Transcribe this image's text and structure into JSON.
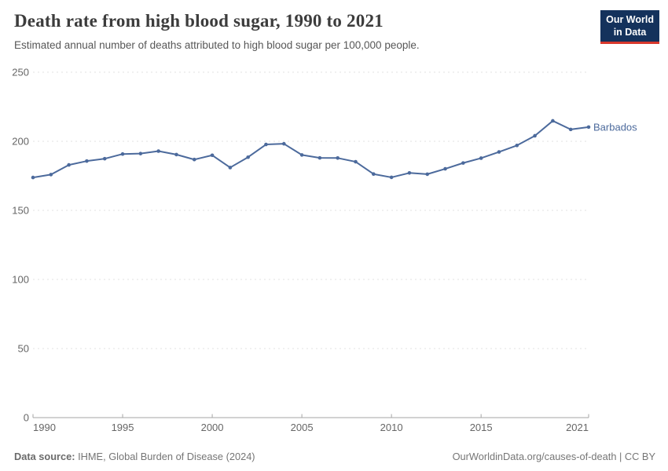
{
  "chart_data": {
    "type": "line",
    "title": "Death rate from high blood sugar, 1990 to 2021",
    "subtitle": "Estimated annual number of deaths attributed to high blood sugar per 100,000 people.",
    "xlim": [
      1990,
      2021
    ],
    "ylim": [
      0,
      250
    ],
    "x_ticks": [
      1990,
      1995,
      2000,
      2005,
      2010,
      2015,
      2021
    ],
    "y_ticks": [
      0,
      50,
      100,
      150,
      200,
      250
    ],
    "grid": "dashed-horizontal",
    "legend_position": "end-of-line-label",
    "x": [
      1990,
      1991,
      1992,
      1993,
      1994,
      1995,
      1996,
      1997,
      1998,
      1999,
      2000,
      2001,
      2002,
      2003,
      2004,
      2005,
      2006,
      2007,
      2008,
      2009,
      2010,
      2011,
      2012,
      2013,
      2014,
      2015,
      2016,
      2017,
      2018,
      2019,
      2020,
      2021
    ],
    "series": [
      {
        "name": "Barbados",
        "color": "#4C6A9C",
        "values": [
          173.8,
          175.9,
          182.9,
          185.7,
          187.4,
          190.8,
          191.1,
          192.9,
          190.4,
          186.8,
          189.9,
          181.0,
          188.5,
          197.7,
          198.2,
          190.1,
          188.0,
          187.9,
          185.2,
          176.3,
          173.9,
          177.1,
          176.2,
          180.1,
          184.3,
          187.8,
          192.3,
          197.0,
          204.0,
          214.8,
          208.6,
          210.3
        ]
      }
    ]
  },
  "header": {
    "logo": {
      "line1": "Our World",
      "line2": "in Data"
    }
  },
  "footer": {
    "datasource_label": "Data source:",
    "datasource": "IHME, Global Burden of Disease (2024)",
    "credit": "OurWorldinData.org/causes-of-death | CC BY"
  },
  "colors": {
    "line": "#4C6A9C",
    "gridline": "#e0e0e0",
    "axis": "#a6a6a6",
    "tick_label": "#666666",
    "title": "#3c3c3c",
    "subtitle": "#575757",
    "logo_bg": "#14325c",
    "logo_stripe": "#d8382c"
  }
}
